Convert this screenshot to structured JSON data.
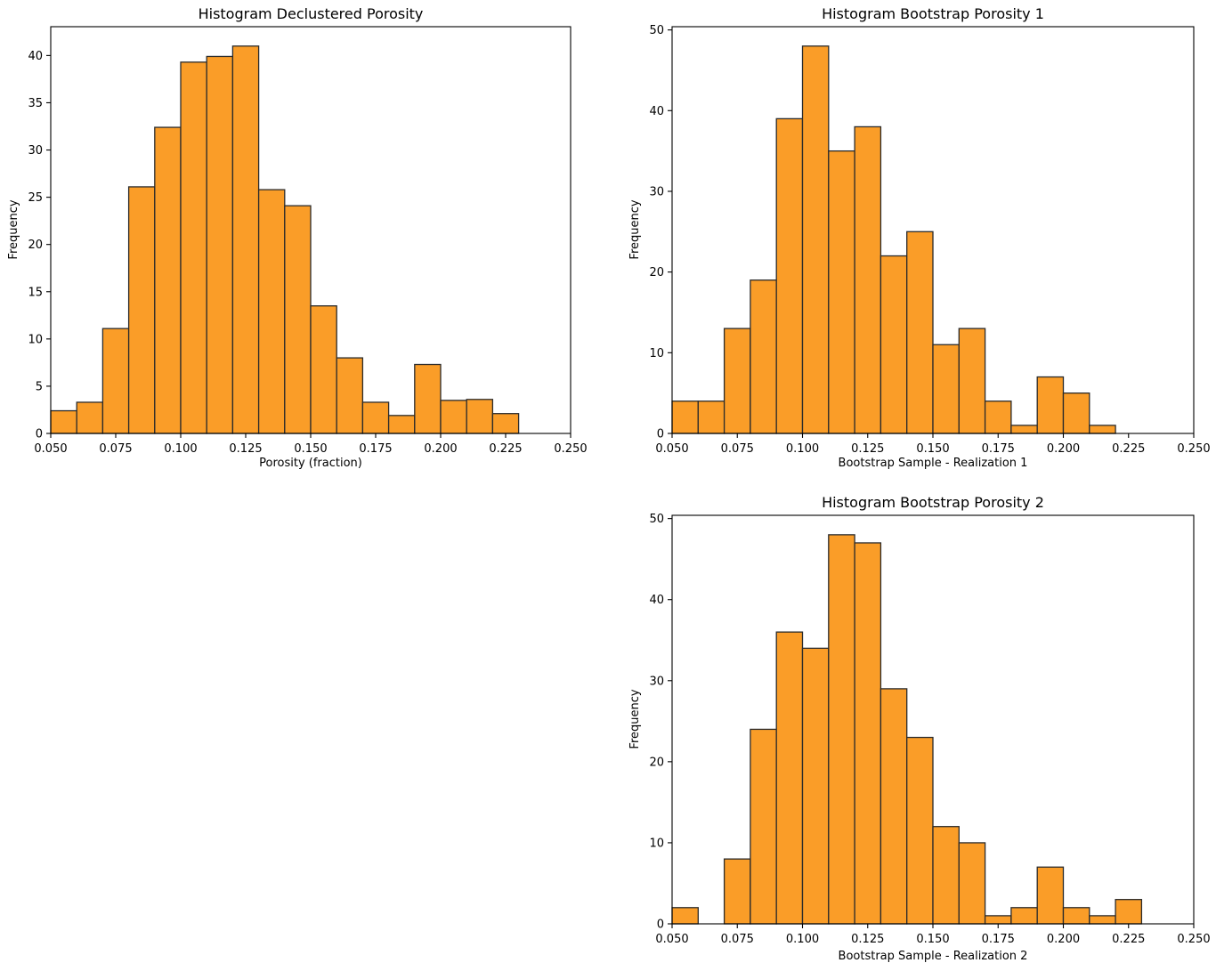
{
  "figure": {
    "background": "#ffffff",
    "text_color": "#000000"
  },
  "chart_data": [
    {
      "type": "bar",
      "subtype": "histogram",
      "title": "Histogram Declustered Porosity",
      "xlabel": "Porosity (fraction)",
      "ylabel": "Frequency",
      "bin_start": 0.05,
      "bin_width": 0.01,
      "values": [
        2.4,
        3.3,
        11.1,
        26.1,
        32.4,
        39.3,
        39.9,
        41.0,
        25.8,
        24.1,
        13.5,
        8.0,
        3.3,
        1.9,
        7.3,
        3.5,
        3.6,
        2.1
      ],
      "weighted": true,
      "xlim": [
        0.05,
        0.25
      ],
      "ylim": [
        0,
        43.05
      ],
      "xticks": [
        "0.050",
        "0.075",
        "0.100",
        "0.125",
        "0.150",
        "0.175",
        "0.200",
        "0.225",
        "0.250"
      ],
      "yticks": [
        "0",
        "5",
        "10",
        "15",
        "20",
        "25",
        "30",
        "35",
        "40"
      ],
      "grid": false,
      "legend": "none",
      "bar_color": "#fa9d28",
      "edge_color": "#2b2b2b"
    },
    {
      "type": "bar",
      "subtype": "histogram",
      "title": "Histogram Bootstrap Porosity 1",
      "xlabel": "Bootstrap Sample - Realization 1",
      "ylabel": "Frequency",
      "bin_start": 0.05,
      "bin_width": 0.01,
      "values": [
        4,
        4,
        13,
        19,
        39,
        48,
        35,
        38,
        22,
        25,
        11,
        13,
        4,
        1,
        7,
        5,
        1
      ],
      "weighted": false,
      "xlim": [
        0.05,
        0.25
      ],
      "ylim": [
        0,
        50.4
      ],
      "xticks": [
        "0.050",
        "0.075",
        "0.100",
        "0.125",
        "0.150",
        "0.175",
        "0.200",
        "0.225",
        "0.250"
      ],
      "yticks": [
        "0",
        "10",
        "20",
        "30",
        "40",
        "50"
      ],
      "grid": false,
      "legend": "none",
      "bar_color": "#fa9d28",
      "edge_color": "#2b2b2b"
    },
    {
      "type": "bar",
      "subtype": "histogram",
      "title": "Histogram Bootstrap Porosity 2",
      "xlabel": "Bootstrap Sample - Realization 2",
      "ylabel": "Frequency",
      "bin_start": 0.05,
      "bin_width": 0.01,
      "values": [
        2,
        0,
        8,
        24,
        36,
        34,
        48,
        47,
        29,
        23,
        12,
        10,
        1,
        2,
        7,
        2,
        1,
        3
      ],
      "weighted": false,
      "xlim": [
        0.05,
        0.25
      ],
      "ylim": [
        0,
        50.4
      ],
      "xticks": [
        "0.050",
        "0.075",
        "0.100",
        "0.125",
        "0.150",
        "0.175",
        "0.200",
        "0.225",
        "0.250"
      ],
      "yticks": [
        "0",
        "10",
        "20",
        "30",
        "40",
        "50"
      ],
      "grid": false,
      "legend": "none",
      "bar_color": "#fa9d28",
      "edge_color": "#2b2b2b"
    }
  ]
}
